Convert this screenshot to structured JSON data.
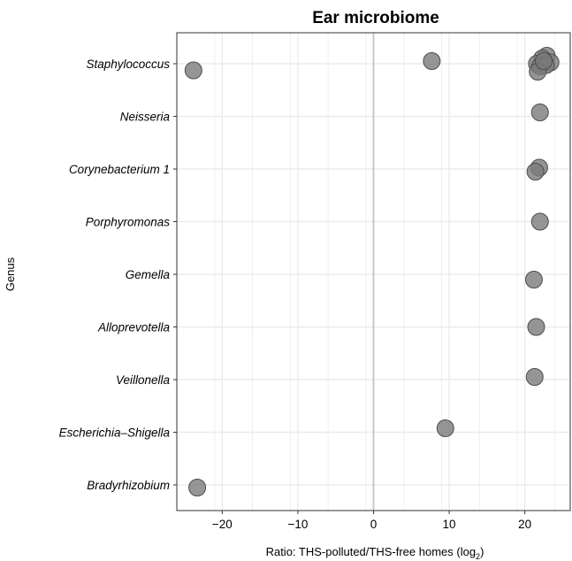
{
  "chart_data": {
    "type": "scatter",
    "title": "Ear microbiome",
    "xlabel_main": "Ratio: THS-polluted/THS-free homes (log",
    "xlabel_sub": "2",
    "xlabel_end": ")",
    "ylabel": "Genus",
    "xlim": [
      -26,
      26
    ],
    "xticks": [
      -20,
      -10,
      0,
      10,
      20
    ],
    "xtick_labels": [
      "−20",
      "−10",
      "0",
      "10",
      "20"
    ],
    "categories": [
      "Staphylococcus",
      "Neisseria",
      "Corynebacterium 1",
      "Porphyromonas",
      "Gemella",
      "Alloprevotella",
      "Veillonella",
      "Escherichia–Shigella",
      "Bradyrhizobium"
    ],
    "points": [
      {
        "genus": "Staphylococcus",
        "x": -23.8,
        "jitter": -0.25
      },
      {
        "genus": "Staphylococcus",
        "x": 7.7,
        "jitter": 0.1
      },
      {
        "genus": "Staphylococcus",
        "x": 22.9,
        "jitter": 0.3
      },
      {
        "genus": "Staphylococcus",
        "x": 22.3,
        "jitter": 0.2
      },
      {
        "genus": "Staphylococcus",
        "x": 23.4,
        "jitter": 0.05
      },
      {
        "genus": "Staphylococcus",
        "x": 21.6,
        "jitter": 0.0
      },
      {
        "genus": "Staphylococcus",
        "x": 22.0,
        "jitter": -0.1
      },
      {
        "genus": "Staphylococcus",
        "x": 22.8,
        "jitter": -0.05
      },
      {
        "genus": "Staphylococcus",
        "x": 21.7,
        "jitter": -0.3
      },
      {
        "genus": "Staphylococcus",
        "x": 22.5,
        "jitter": 0.1
      },
      {
        "genus": "Neisseria",
        "x": 22.0,
        "jitter": 0.15
      },
      {
        "genus": "Corynebacterium 1",
        "x": 21.9,
        "jitter": 0.05
      },
      {
        "genus": "Corynebacterium 1",
        "x": 21.4,
        "jitter": -0.1
      },
      {
        "genus": "Porphyromonas",
        "x": 22.0,
        "jitter": 0.0
      },
      {
        "genus": "Gemella",
        "x": 21.2,
        "jitter": -0.2
      },
      {
        "genus": "Alloprevotella",
        "x": 21.5,
        "jitter": 0.0
      },
      {
        "genus": "Veillonella",
        "x": 21.3,
        "jitter": 0.1
      },
      {
        "genus": "Escherichia–Shigella",
        "x": 9.5,
        "jitter": 0.15
      },
      {
        "genus": "Bradyrhizobium",
        "x": -23.3,
        "jitter": -0.1
      }
    ],
    "colors": {
      "point_fill": "#7a7a7a",
      "point_stroke": "#4d4d4d",
      "grid": "#ebebeb",
      "zero_line": "#c8c8c8",
      "panel_border": "#333333"
    },
    "grid": true
  }
}
